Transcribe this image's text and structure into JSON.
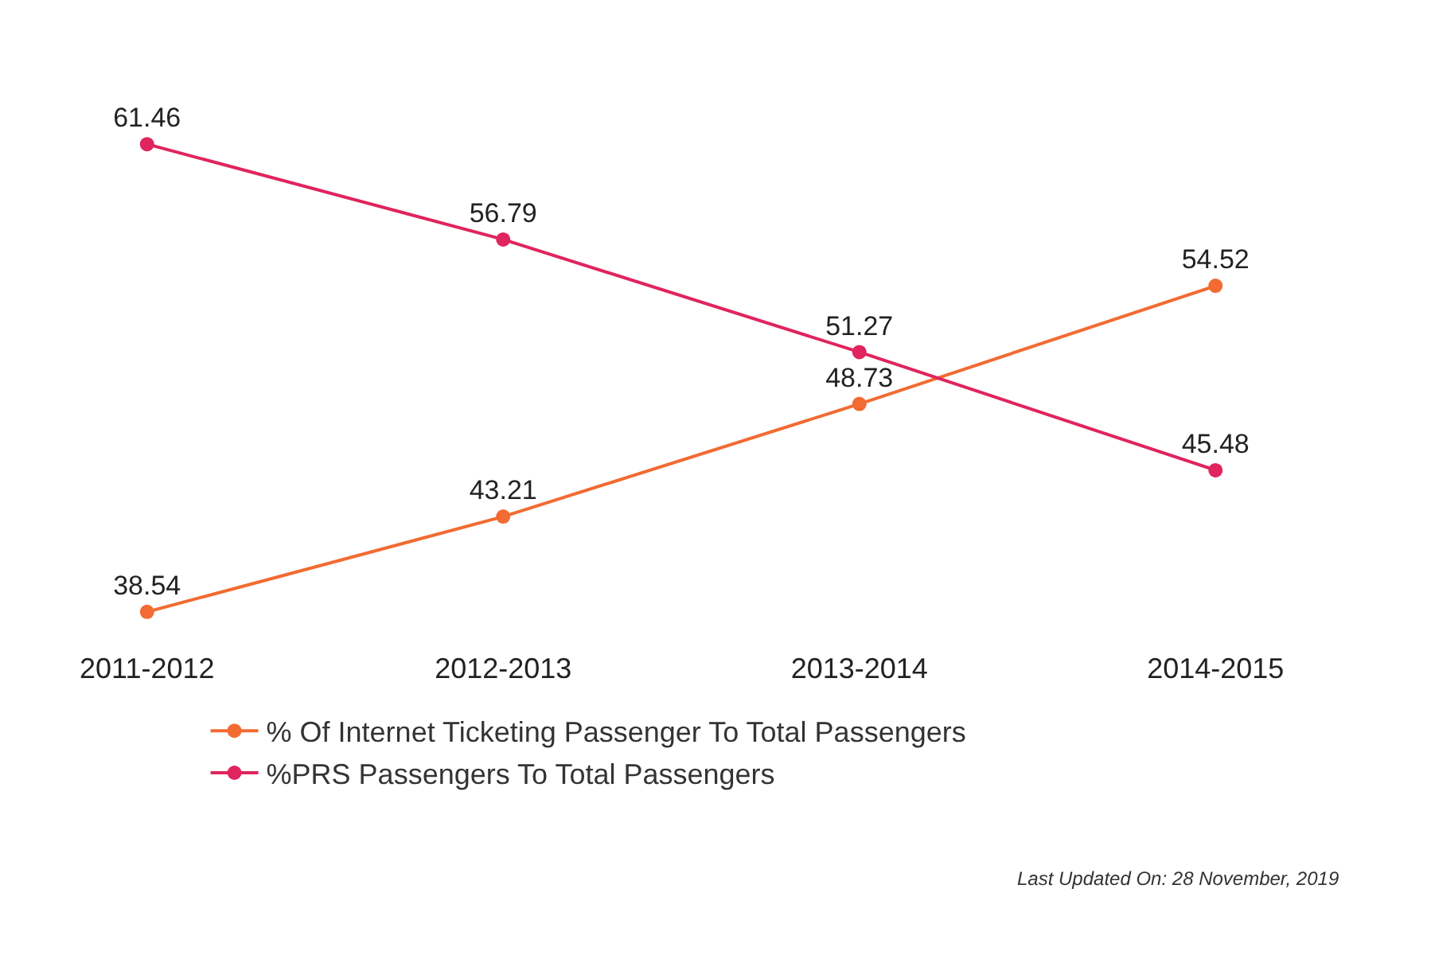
{
  "chart_data": {
    "type": "line",
    "categories": [
      "2011-2012",
      "2012-2013",
      "2013-2014",
      "2014-2015"
    ],
    "series": [
      {
        "name": "% Of Internet Ticketing Passenger To Total Passengers",
        "color": "#f26b32",
        "values": [
          38.54,
          43.21,
          48.73,
          54.52
        ]
      },
      {
        "name": "%PRS Passengers To Total Passengers",
        "color": "#e0245e",
        "values": [
          61.46,
          56.79,
          51.27,
          45.48
        ]
      }
    ],
    "data_labels": true,
    "marker": "circle",
    "line_style": "solid",
    "grid": false,
    "legend": "bottom",
    "tick_labels": "x",
    "annotations": [
      "Last Updated On: 28 November, 2019"
    ]
  }
}
